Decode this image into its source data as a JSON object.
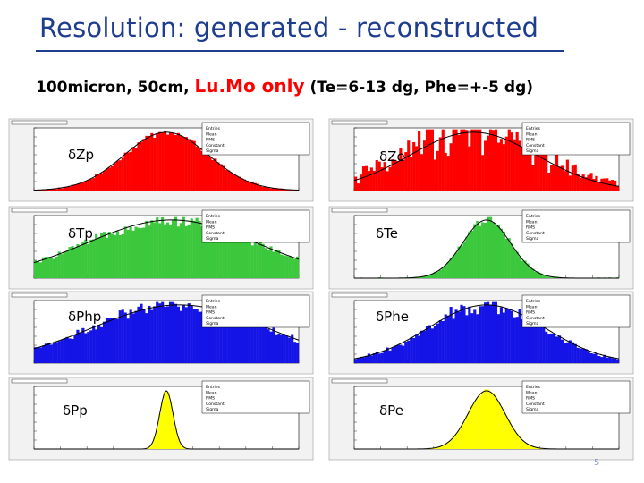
{
  "title": "Resolution: generated - reconstructed",
  "subtitle": {
    "prefix": "100micron, 50cm, ",
    "highlight": "Lu.Mo only",
    "suffix": " (Te=6-13 dg, Phe=+-5 dg)"
  },
  "page_number": "5",
  "chart_data": [
    {
      "type": "bar",
      "label": "δZp",
      "color": "#ff0000",
      "shape": "gauss",
      "center": 0.5,
      "width": 0.16,
      "noise": 0.06,
      "ylim": [
        0,
        350
      ],
      "stats": [
        "Entries",
        "Mean",
        "RMS",
        "Constant",
        "Sigma"
      ]
    },
    {
      "type": "bar",
      "label": "δZe",
      "color": "#ff0000",
      "shape": "gauss",
      "center": 0.45,
      "width": 0.24,
      "noise": 0.35,
      "ylim": [
        0,
        110
      ],
      "stats": [
        "Entries",
        "Mean",
        "RMS",
        "Constant",
        "Sigma"
      ]
    },
    {
      "type": "bar",
      "label": "δTp",
      "color": "#3cc83c",
      "shape": "gauss",
      "center": 0.52,
      "width": 0.32,
      "noise": 0.1,
      "ylim": [
        0,
        180
      ],
      "stats": [
        "Entries",
        "Mean",
        "RMS",
        "Constant",
        "Sigma"
      ]
    },
    {
      "type": "bar",
      "label": "δTe",
      "color": "#3cc83c",
      "shape": "gauss",
      "center": 0.5,
      "width": 0.09,
      "noise": 0.07,
      "ylim": [
        0,
        180
      ],
      "stats": [
        "Entries",
        "Mean",
        "RMS",
        "Constant",
        "Sigma"
      ]
    },
    {
      "type": "bar",
      "label": "δPhp",
      "color": "#1414e6",
      "shape": "gauss",
      "center": 0.55,
      "width": 0.33,
      "noise": 0.12,
      "ylim": [
        0,
        150
      ],
      "stats": [
        "Entries",
        "Mean",
        "RMS",
        "Constant",
        "Sigma"
      ]
    },
    {
      "type": "bar",
      "label": "δPhe",
      "color": "#1414e6",
      "shape": "gauss",
      "center": 0.5,
      "width": 0.22,
      "noise": 0.14,
      "ylim": [
        0,
        120
      ],
      "stats": [
        "Entries",
        "Mean",
        "RMS",
        "Constant",
        "Sigma"
      ]
    },
    {
      "type": "bar",
      "label": "δPp",
      "color": "#ffff00",
      "shape": "gauss",
      "center": 0.5,
      "width": 0.025,
      "noise": 0.02,
      "ylim": [
        0,
        2400
      ],
      "stats": [
        "Entries",
        "Mean",
        "RMS",
        "Constant",
        "Sigma"
      ]
    },
    {
      "type": "bar",
      "label": "δPe",
      "color": "#ffff00",
      "shape": "gauss",
      "center": 0.5,
      "width": 0.07,
      "noise": 0.03,
      "ylim": [
        0,
        900
      ],
      "stats": [
        "Entries",
        "Mean",
        "RMS",
        "Constant",
        "Sigma"
      ]
    }
  ]
}
